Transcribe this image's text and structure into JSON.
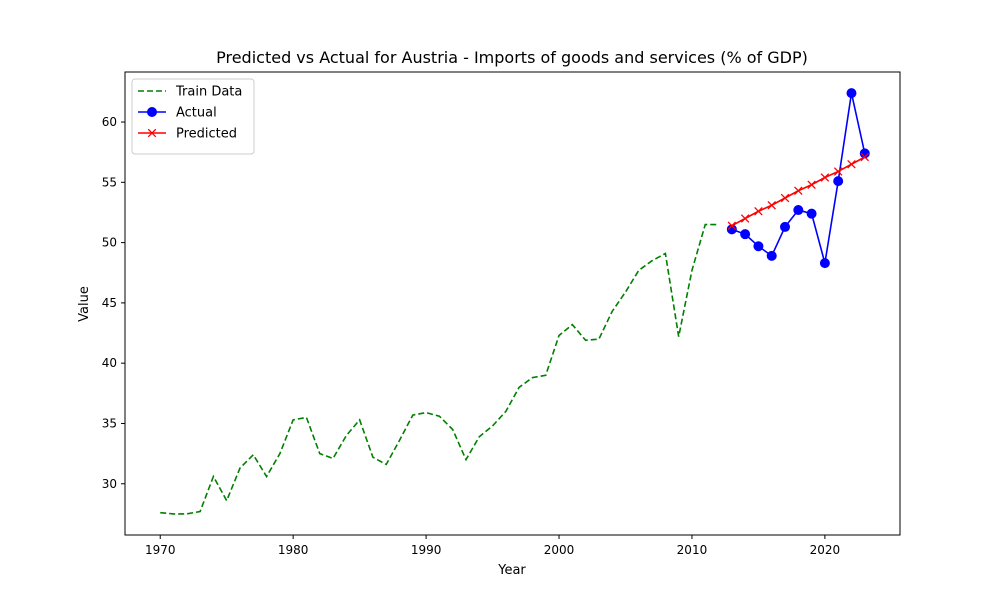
{
  "chart_data": {
    "type": "line",
    "title": "Predicted vs Actual for Austria - Imports of goods and services (% of GDP)",
    "xlabel": "Year",
    "ylabel": "Value",
    "xlim": [
      1967.35,
      2025.65
    ],
    "ylim": [
      25.75,
      64.15
    ],
    "xticks": [
      1970,
      1980,
      1990,
      2000,
      2010,
      2020
    ],
    "yticks": [
      30,
      35,
      40,
      45,
      50,
      55,
      60
    ],
    "grid": false,
    "legend_position": "top-left",
    "series": [
      {
        "name": "Train Data",
        "color": "#008000",
        "line_style": "dashed",
        "marker": "none",
        "x": [
          1970,
          1971,
          1972,
          1973,
          1974,
          1975,
          1976,
          1977,
          1978,
          1979,
          1980,
          1981,
          1982,
          1983,
          1984,
          1985,
          1986,
          1987,
          1988,
          1989,
          1990,
          1991,
          1992,
          1993,
          1994,
          1995,
          1996,
          1997,
          1998,
          1999,
          2000,
          2001,
          2002,
          2003,
          2004,
          2005,
          2006,
          2007,
          2008,
          2009,
          2010,
          2011,
          2012
        ],
        "y": [
          27.6,
          27.5,
          27.5,
          27.7,
          30.6,
          28.6,
          31.3,
          32.4,
          30.6,
          32.5,
          35.3,
          35.5,
          32.5,
          32.1,
          34.0,
          35.3,
          32.2,
          31.6,
          33.6,
          35.7,
          35.9,
          35.6,
          34.5,
          32.0,
          33.9,
          34.8,
          36.0,
          38.0,
          38.8,
          39.0,
          42.3,
          43.2,
          41.9,
          42.0,
          44.3,
          45.9,
          47.7,
          48.5,
          49.1,
          42.2,
          47.7,
          51.5,
          51.5
        ]
      },
      {
        "name": "Actual",
        "color": "#0000ff",
        "line_style": "solid",
        "marker": "circle",
        "x": [
          2013,
          2014,
          2015,
          2016,
          2017,
          2018,
          2019,
          2020,
          2021,
          2022,
          2023
        ],
        "y": [
          51.1,
          50.7,
          49.7,
          48.9,
          51.3,
          52.7,
          52.4,
          48.3,
          55.1,
          62.4,
          57.4
        ]
      },
      {
        "name": "Predicted",
        "color": "#ff0000",
        "line_style": "solid",
        "marker": "x",
        "x": [
          2013,
          2014,
          2015,
          2016,
          2017,
          2018,
          2019,
          2020,
          2021,
          2022,
          2023
        ],
        "y": [
          51.4,
          52.0,
          52.6,
          53.1,
          53.7,
          54.3,
          54.8,
          55.4,
          55.9,
          56.5,
          57.1
        ]
      }
    ]
  }
}
